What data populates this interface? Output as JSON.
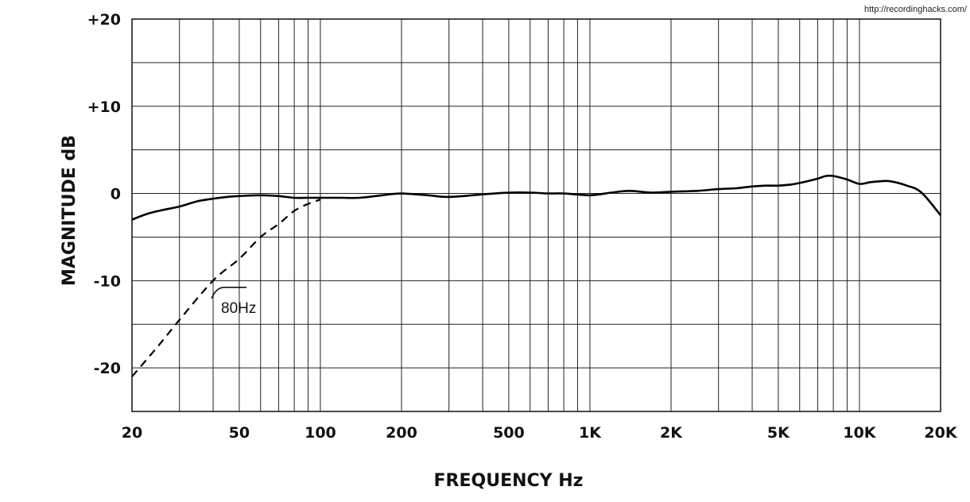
{
  "watermark": "http://recordinghacks.com/",
  "chart_data": {
    "type": "line",
    "title": "",
    "xlabel": "FREQUENCY Hz",
    "ylabel": "MAGNITUDE dB",
    "x_scale": "log",
    "xlim": [
      20,
      20000
    ],
    "ylim": [
      -25,
      20
    ],
    "grid": true,
    "x_ticks": [
      {
        "value": 20,
        "label": "20"
      },
      {
        "value": 50,
        "label": "50"
      },
      {
        "value": 100,
        "label": "100"
      },
      {
        "value": 200,
        "label": "200"
      },
      {
        "value": 500,
        "label": "500"
      },
      {
        "value": 1000,
        "label": "1K"
      },
      {
        "value": 2000,
        "label": "2K"
      },
      {
        "value": 5000,
        "label": "5K"
      },
      {
        "value": 10000,
        "label": "10K"
      },
      {
        "value": 20000,
        "label": "20K"
      }
    ],
    "y_ticks": [
      {
        "value": 20,
        "label": "+20"
      },
      {
        "value": 10,
        "label": "+10"
      },
      {
        "value": 0,
        "label": "0"
      },
      {
        "value": -10,
        "label": "-10"
      },
      {
        "value": -20,
        "label": "-20"
      }
    ],
    "series": [
      {
        "style": "solid",
        "x": [
          20,
          23,
          26,
          30,
          35,
          40,
          45,
          50,
          60,
          70,
          80,
          90,
          100,
          120,
          140,
          170,
          200,
          250,
          300,
          400,
          500,
          600,
          700,
          800,
          1000,
          1200,
          1400,
          1700,
          2000,
          2500,
          3000,
          3500,
          4000,
          4500,
          5000,
          5500,
          6000,
          7000,
          7500,
          8000,
          9000,
          10000,
          11000,
          12000,
          13000,
          15000,
          17000,
          20000
        ],
        "y": [
          -3.0,
          -2.3,
          -1.9,
          -1.5,
          -0.9,
          -0.6,
          -0.4,
          -0.3,
          -0.2,
          -0.3,
          -0.5,
          -0.5,
          -0.5,
          -0.5,
          -0.5,
          -0.2,
          0.0,
          -0.2,
          -0.4,
          -0.1,
          0.1,
          0.1,
          0.0,
          0.0,
          -0.2,
          0.1,
          0.3,
          0.1,
          0.2,
          0.3,
          0.5,
          0.6,
          0.8,
          0.9,
          0.9,
          1.0,
          1.2,
          1.7,
          2.0,
          2.0,
          1.6,
          1.1,
          1.3,
          1.4,
          1.4,
          0.9,
          0.1,
          -2.5
        ]
      },
      {
        "style": "dashed",
        "x": [
          20,
          25,
          30,
          40,
          50,
          60,
          70,
          80,
          90,
          100
        ],
        "y": [
          -21.0,
          -17.5,
          -14.5,
          -10.0,
          -7.5,
          -5.0,
          -3.5,
          -2.0,
          -1.2,
          -0.7
        ]
      }
    ],
    "annotations": [
      {
        "text": "80Hz",
        "x": 40,
        "y": -13.5
      }
    ]
  }
}
